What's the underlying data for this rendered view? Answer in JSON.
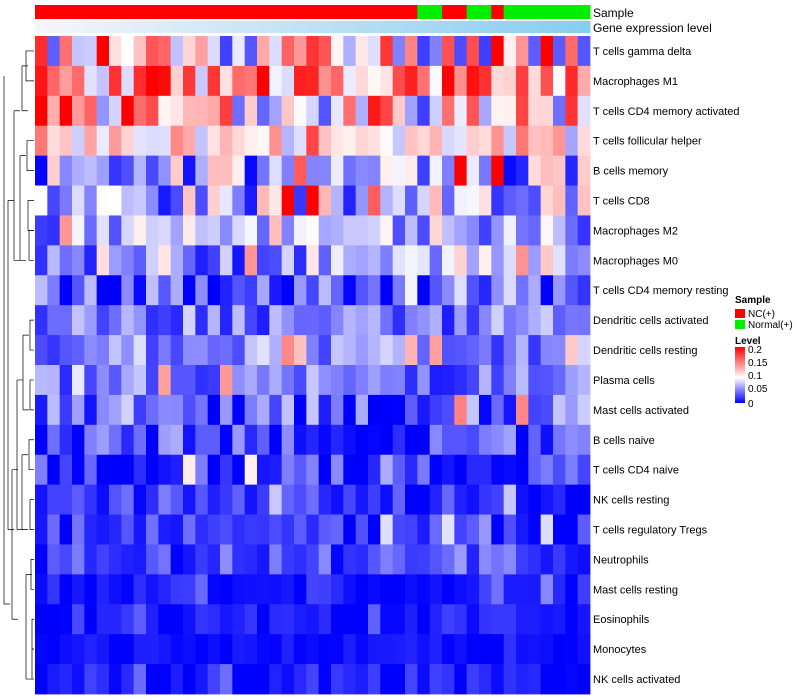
{
  "chart_data": {
    "type": "heatmap",
    "title": "",
    "annotation_tracks": [
      "Sample",
      "Gene expression level"
    ],
    "sample_groups": [
      "N",
      "N",
      "N",
      "N",
      "N",
      "N",
      "N",
      "N",
      "N",
      "N",
      "N",
      "N",
      "N",
      "N",
      "N",
      "N",
      "N",
      "N",
      "N",
      "N",
      "N",
      "N",
      "N",
      "N",
      "N",
      "N",
      "N",
      "N",
      "N",
      "N",
      "N",
      "C",
      "C",
      "N",
      "N",
      "C",
      "C",
      "N",
      "C",
      "C",
      "C",
      "C",
      "C",
      "C",
      "C"
    ],
    "legend_sample": {
      "title": "Sample",
      "items": [
        {
          "label": "NC(+)",
          "color": "#ff0000"
        },
        {
          "label": "Normal(+)",
          "color": "#00ee00"
        }
      ]
    },
    "legend_level": {
      "title": "Level",
      "ticks": [
        "0.2",
        "0.15",
        "0.1",
        "0.05",
        "0"
      ],
      "colors": [
        "#0000ff",
        "#ffffff",
        "#ff0000"
      ],
      "range": [
        0,
        0.22
      ]
    },
    "rows": [
      {
        "label": "T cells gamma delta",
        "base": 0.12,
        "var": 0.1,
        "seed": 11
      },
      {
        "label": "Macrophages M1",
        "base": 0.15,
        "var": 0.07,
        "seed": 23
      },
      {
        "label": "T cells CD4 memory activated",
        "base": 0.11,
        "var": 0.09,
        "seed": 37
      },
      {
        "label": "T cells follicular helper",
        "base": 0.12,
        "var": 0.05,
        "seed": 41
      },
      {
        "label": "B cells memory",
        "base": 0.07,
        "var": 0.07,
        "seed": 53
      },
      {
        "label": "T cells CD8",
        "base": 0.08,
        "var": 0.07,
        "seed": 67
      },
      {
        "label": "Macrophages M2",
        "base": 0.07,
        "var": 0.05,
        "seed": 71
      },
      {
        "label": "Macrophages M0",
        "base": 0.07,
        "var": 0.06,
        "seed": 83
      },
      {
        "label": "T cells CD4 memory resting",
        "base": 0.04,
        "var": 0.07,
        "seed": 97
      },
      {
        "label": "Dendritic cells activated",
        "base": 0.05,
        "var": 0.04,
        "seed": 101
      },
      {
        "label": "Dendritic cells resting",
        "base": 0.06,
        "var": 0.04,
        "seed": 113
      },
      {
        "label": "Plasma cells",
        "base": 0.05,
        "var": 0.04,
        "seed": 127
      },
      {
        "label": "Mast cells activated",
        "base": 0.04,
        "var": 0.05,
        "seed": 131
      },
      {
        "label": "B cells naive",
        "base": 0.02,
        "var": 0.05,
        "seed": 149
      },
      {
        "label": "T cells CD4 naive",
        "base": 0.02,
        "var": 0.04,
        "seed": 151
      },
      {
        "label": "NK cells resting",
        "base": 0.02,
        "var": 0.03,
        "seed": 167
      },
      {
        "label": "T cells regulatory  Tregs",
        "base": 0.02,
        "var": 0.03,
        "seed": 173
      },
      {
        "label": "Neutrophils",
        "base": 0.03,
        "var": 0.03,
        "seed": 181
      },
      {
        "label": "Mast cells resting",
        "base": 0.01,
        "var": 0.02,
        "seed": 191
      },
      {
        "label": "Eosinophils",
        "base": 0.01,
        "var": 0.02,
        "seed": 193
      },
      {
        "label": "Monocytes",
        "base": 0.005,
        "var": 0.01,
        "seed": 197
      },
      {
        "label": "NK cells activated",
        "base": 0.01,
        "var": 0.02,
        "seed": 199
      }
    ],
    "n_samples": 45
  }
}
